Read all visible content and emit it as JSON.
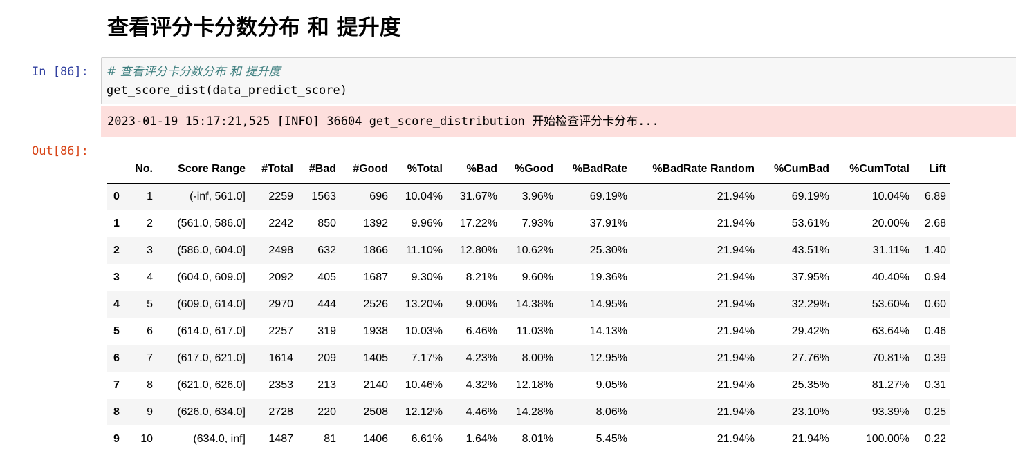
{
  "heading": "查看评分卡分数分布 和 提升度",
  "cell": {
    "in_prompt": "In [86]:",
    "out_prompt": "Out[86]:",
    "code_lines": [
      "# 查看评分卡分数分布 和 提升度",
      "get_score_dist(data_predict_score)"
    ],
    "stderr_text": "2023-01-19 15:17:21,525 [INFO] 36604 get_score_distribution 开始检查评分卡分布..."
  },
  "table": {
    "columns": [
      "",
      "No.",
      "Score Range",
      "#Total",
      "#Bad",
      "#Good",
      "%Total",
      "%Bad",
      "%Good",
      "%BadRate",
      "%BadRate Random",
      "%CumBad",
      "%CumTotal",
      "Lift"
    ],
    "rows": [
      [
        "0",
        "1",
        "(-inf, 561.0]",
        "2259",
        "1563",
        "696",
        "10.04%",
        "31.67%",
        "3.96%",
        "69.19%",
        "21.94%",
        "69.19%",
        "10.04%",
        "6.89"
      ],
      [
        "1",
        "2",
        "(561.0, 586.0]",
        "2242",
        "850",
        "1392",
        "9.96%",
        "17.22%",
        "7.93%",
        "37.91%",
        "21.94%",
        "53.61%",
        "20.00%",
        "2.68"
      ],
      [
        "2",
        "3",
        "(586.0, 604.0]",
        "2498",
        "632",
        "1866",
        "11.10%",
        "12.80%",
        "10.62%",
        "25.30%",
        "21.94%",
        "43.51%",
        "31.11%",
        "1.40"
      ],
      [
        "3",
        "4",
        "(604.0, 609.0]",
        "2092",
        "405",
        "1687",
        "9.30%",
        "8.21%",
        "9.60%",
        "19.36%",
        "21.94%",
        "37.95%",
        "40.40%",
        "0.94"
      ],
      [
        "4",
        "5",
        "(609.0, 614.0]",
        "2970",
        "444",
        "2526",
        "13.20%",
        "9.00%",
        "14.38%",
        "14.95%",
        "21.94%",
        "32.29%",
        "53.60%",
        "0.60"
      ],
      [
        "5",
        "6",
        "(614.0, 617.0]",
        "2257",
        "319",
        "1938",
        "10.03%",
        "6.46%",
        "11.03%",
        "14.13%",
        "21.94%",
        "29.42%",
        "63.64%",
        "0.46"
      ],
      [
        "6",
        "7",
        "(617.0, 621.0]",
        "1614",
        "209",
        "1405",
        "7.17%",
        "4.23%",
        "8.00%",
        "12.95%",
        "21.94%",
        "27.76%",
        "70.81%",
        "0.39"
      ],
      [
        "7",
        "8",
        "(621.0, 626.0]",
        "2353",
        "213",
        "2140",
        "10.46%",
        "4.32%",
        "12.18%",
        "9.05%",
        "21.94%",
        "25.35%",
        "81.27%",
        "0.31"
      ],
      [
        "8",
        "9",
        "(626.0, 634.0]",
        "2728",
        "220",
        "2508",
        "12.12%",
        "4.46%",
        "14.28%",
        "8.06%",
        "21.94%",
        "23.10%",
        "93.39%",
        "0.25"
      ],
      [
        "9",
        "10",
        "(634.0, inf]",
        "1487",
        "81",
        "1406",
        "6.61%",
        "1.64%",
        "8.01%",
        "5.45%",
        "21.94%",
        "21.94%",
        "100.00%",
        "0.22"
      ]
    ]
  },
  "colors": {
    "in_prompt": "#303f9f",
    "out_prompt": "#d84315",
    "comment": "#408080",
    "stderr_bg": "#fddfdd",
    "code_bg": "#f7f7f7"
  }
}
